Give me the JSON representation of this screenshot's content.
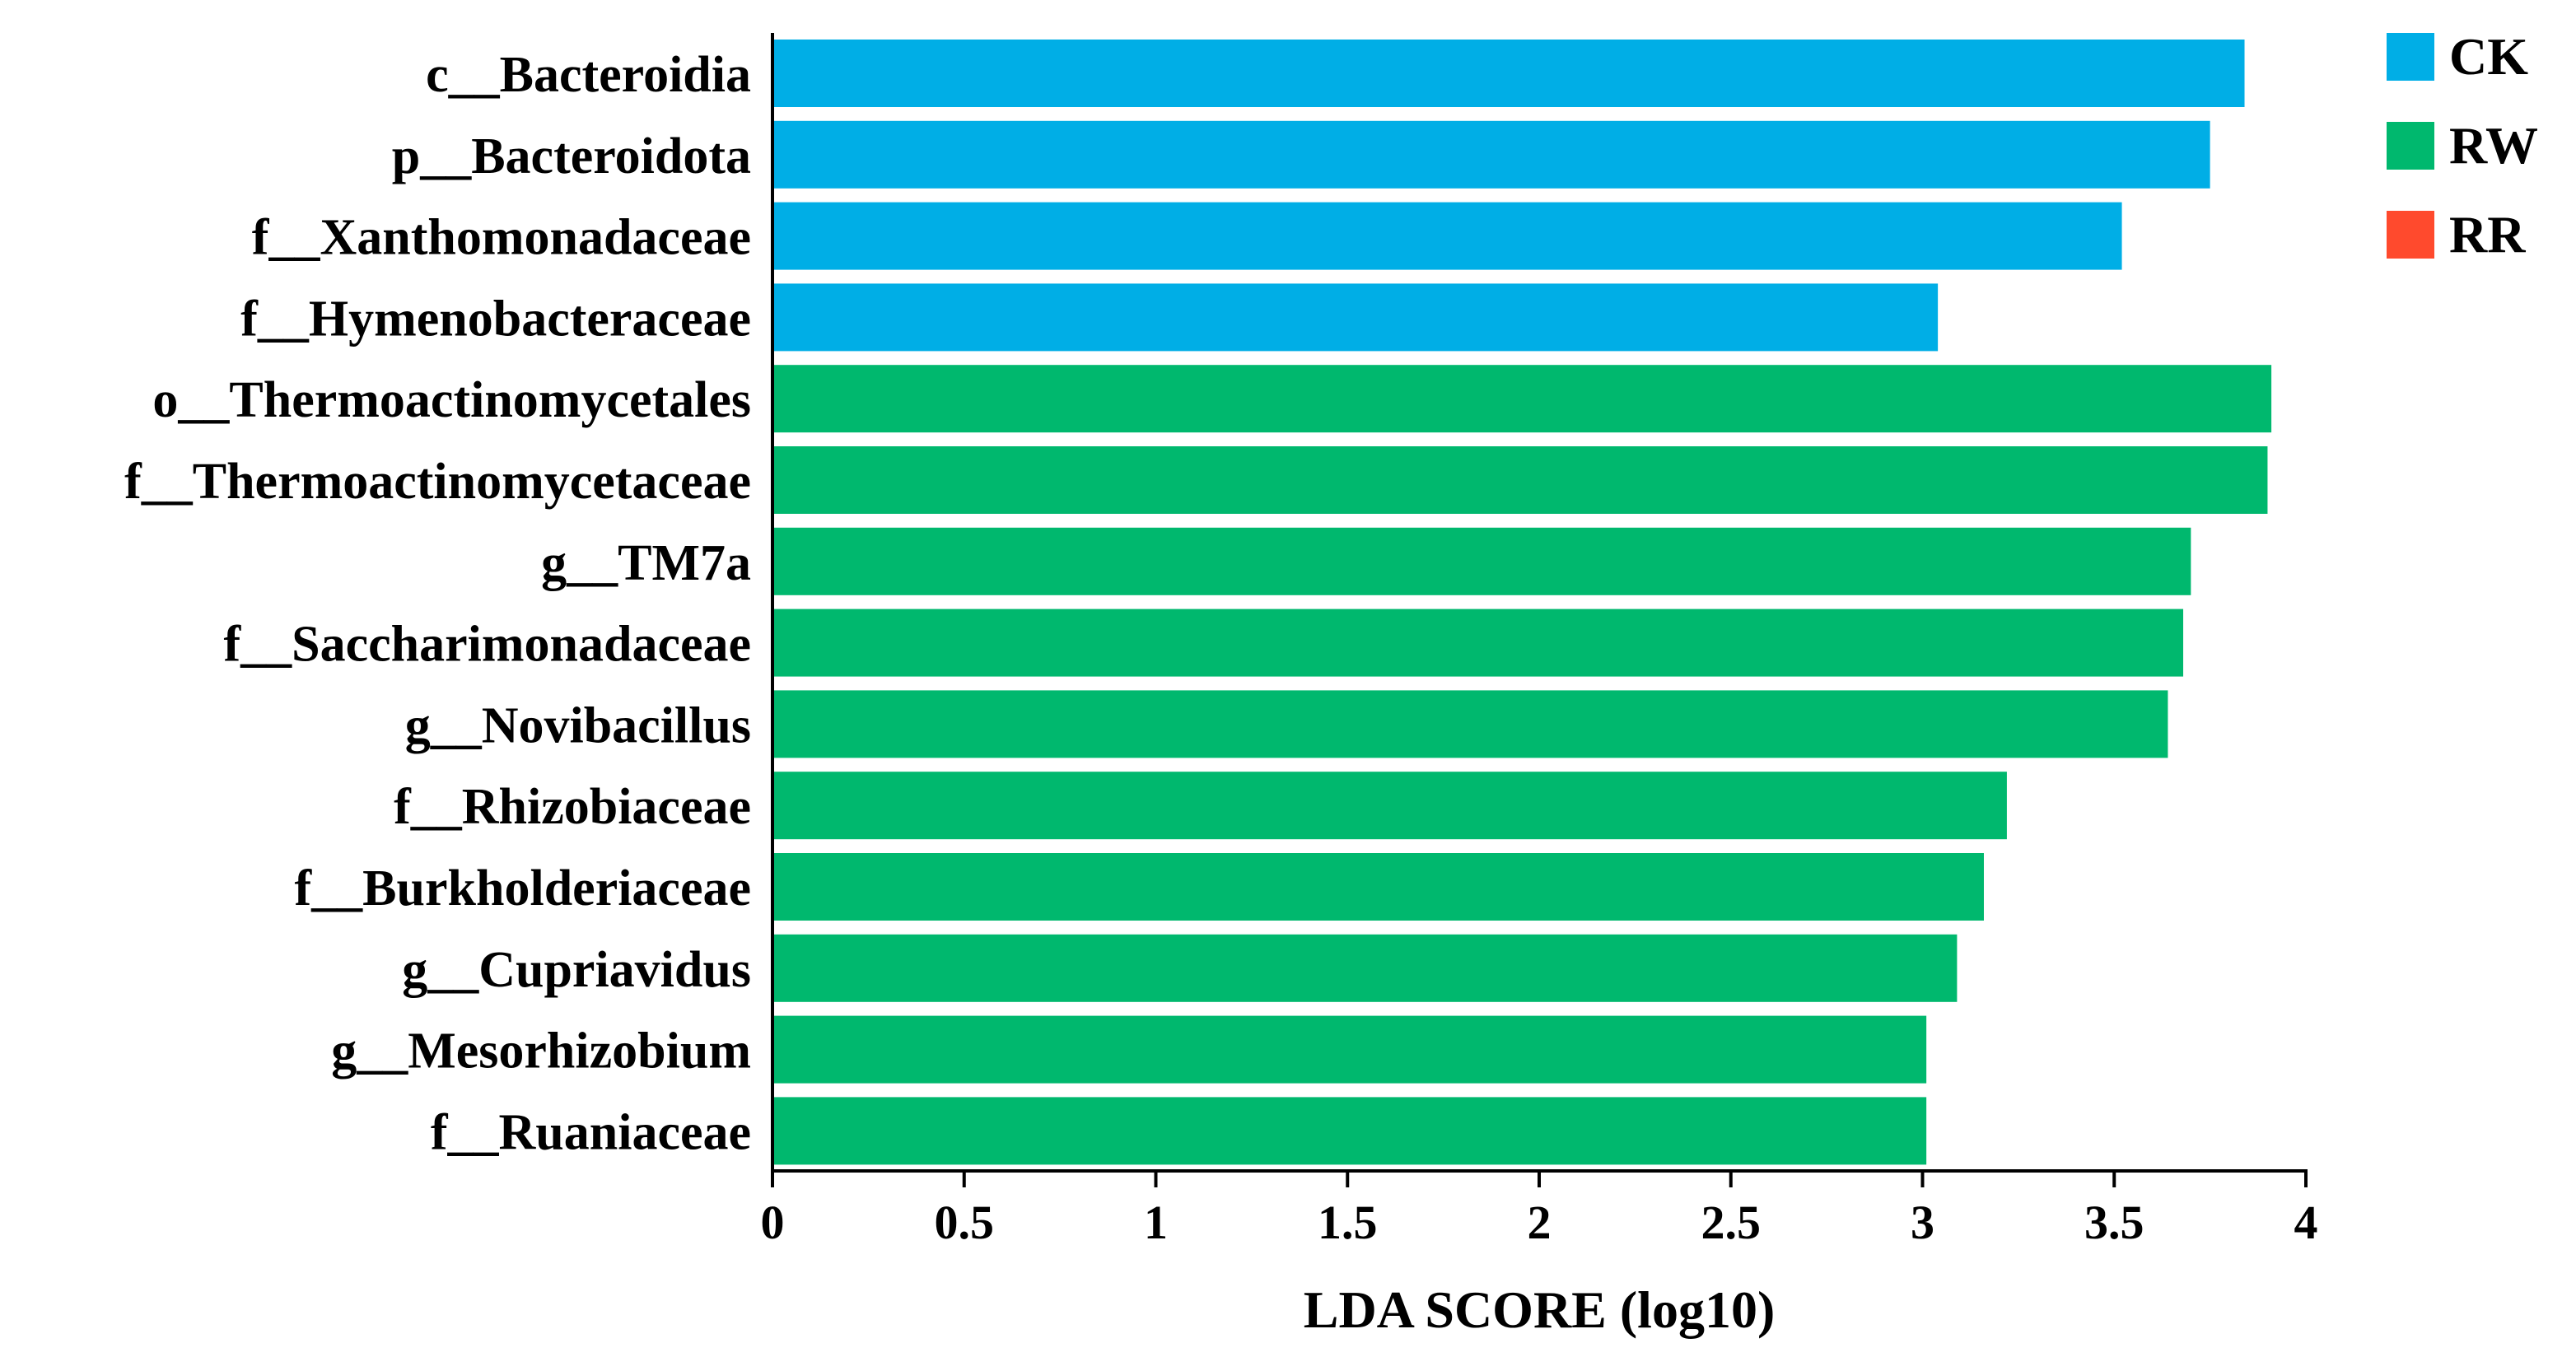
{
  "chart_data": {
    "type": "bar",
    "orientation": "horizontal",
    "title": "",
    "xlabel": "LDA SCORE (log10)",
    "ylabel": "",
    "xlim": [
      0,
      4
    ],
    "xticks": [
      "0",
      "0.5",
      "1",
      "1.5",
      "2",
      "2.5",
      "3",
      "3.5",
      "4"
    ],
    "legend_position": "top-right",
    "groups": [
      {
        "name": "CK",
        "color": "#00aee6"
      },
      {
        "name": "RW",
        "color": "#00b86e"
      },
      {
        "name": "RR",
        "color": "#ff4a2d"
      }
    ],
    "categories": [
      "c__Bacteroidia",
      "p__Bacteroidota",
      "f__Xanthomonadaceae",
      "f__Hymenobacteraceae",
      "o__Thermoactinomycetales",
      "f__Thermoactinomycetaceae",
      "g__TM7a",
      "f__Saccharimonadaceae",
      "g__Novibacillus",
      "f__Rhizobiaceae",
      "f__Burkholderiaceae",
      "g__Cupriavidus",
      "g__Mesorhizobium",
      "f__Ruaniaceae"
    ],
    "values": [
      3.84,
      3.75,
      3.52,
      3.04,
      3.91,
      3.9,
      3.7,
      3.68,
      3.64,
      3.22,
      3.16,
      3.09,
      3.01,
      3.01
    ],
    "bar_groups": [
      "CK",
      "CK",
      "CK",
      "CK",
      "RW",
      "RW",
      "RW",
      "RW",
      "RW",
      "RW",
      "RW",
      "RW",
      "RW",
      "RW"
    ]
  }
}
